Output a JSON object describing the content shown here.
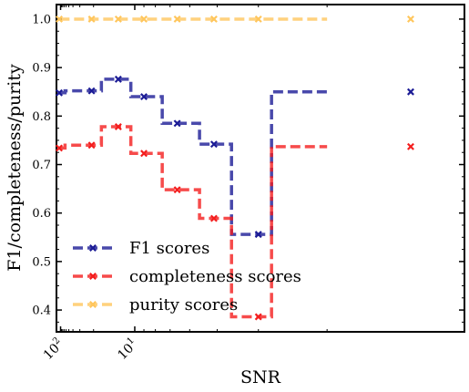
{
  "chart_data": {
    "type": "line",
    "step": true,
    "x_scale": "reciprocal",
    "xlabel": "SNR",
    "ylabel": "F1/completeness/purity",
    "ylim": [
      0.355,
      1.03
    ],
    "y_ticks": [
      0.4,
      0.5,
      0.6,
      0.7,
      0.8,
      0.9,
      1.0
    ],
    "y_tick_labels": [
      "0.4",
      "0.5",
      "0.6",
      "0.7",
      "0.8",
      "0.9",
      "1.0"
    ],
    "x_ticks": [
      {
        "value": 100,
        "label_base": "10",
        "label_exp": "2"
      },
      {
        "value": 10,
        "label_base": "10",
        "label_exp": "1"
      }
    ],
    "grid": false,
    "legend": "lower-left",
    "bin_edges": [
      115,
      65,
      20.5,
      16.8,
      10.5,
      7.5,
      5.6,
      4.6,
      3.76,
      3.0
    ],
    "markers_x": [
      120,
      21,
      12.5,
      9.0,
      6.6,
      5.1,
      4.0,
      2.3
    ],
    "series": [
      {
        "name": "F1 scores",
        "color": "#1c1c96",
        "dash": "dashed",
        "values": [
          0.848,
          0.852,
          0.852,
          0.876,
          0.84,
          0.785,
          0.742,
          0.556,
          0.85
        ],
        "marker_values": [
          0.848,
          0.852,
          0.876,
          0.84,
          0.785,
          0.742,
          0.556,
          0.85
        ]
      },
      {
        "name": "completeness scores",
        "color": "#f41e1e",
        "dash": "dashed",
        "values": [
          0.734,
          0.74,
          0.74,
          0.778,
          0.723,
          0.648,
          0.589,
          0.386,
          0.737
        ],
        "marker_values": [
          0.734,
          0.74,
          0.778,
          0.723,
          0.648,
          0.589,
          0.386,
          0.737
        ]
      },
      {
        "name": "purity scores",
        "color": "#ffc65c",
        "dash": "dashed",
        "values": [
          1.0,
          1.0,
          1.0,
          1.0,
          1.0,
          1.0,
          1.0,
          1.0,
          1.0
        ],
        "marker_values": [
          1.0,
          1.0,
          1.0,
          1.0,
          1.0,
          1.0,
          1.0,
          1.0
        ]
      }
    ]
  }
}
